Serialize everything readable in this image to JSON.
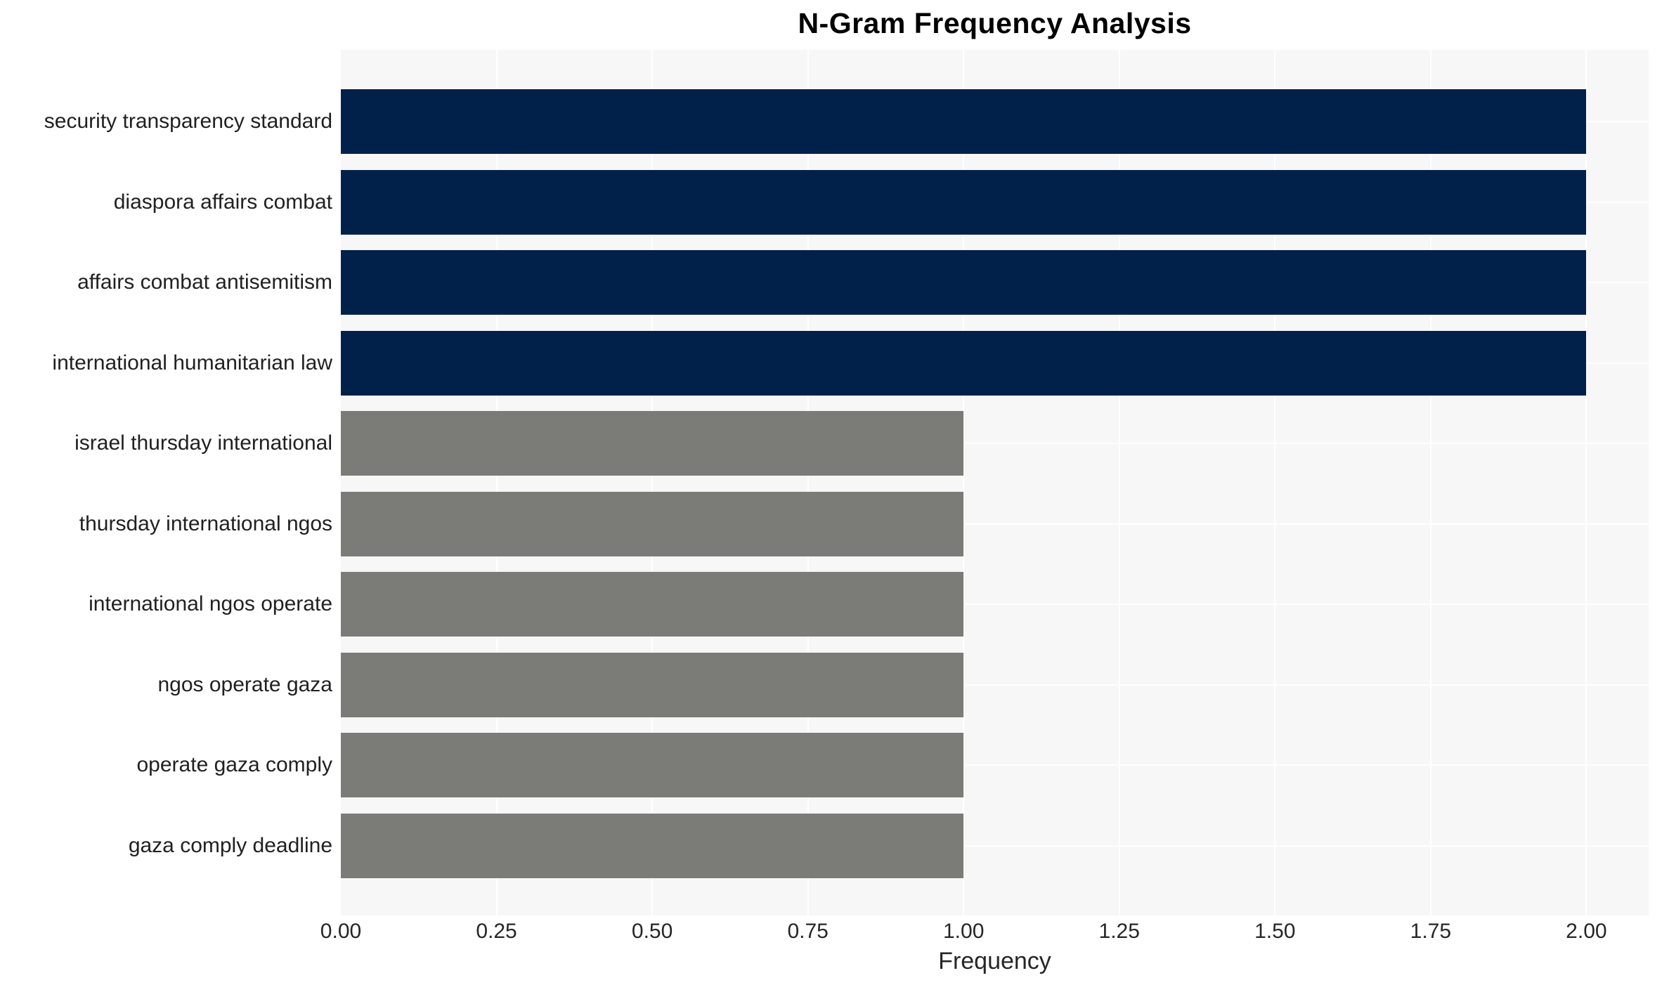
{
  "chart_data": {
    "type": "bar",
    "orientation": "horizontal",
    "title": "N-Gram Frequency Analysis",
    "xlabel": "Frequency",
    "ylabel": "",
    "categories": [
      "security transparency standard",
      "diaspora affairs combat",
      "affairs combat antisemitism",
      "international humanitarian law",
      "israel thursday international",
      "thursday international ngos",
      "international ngos operate",
      "ngos operate gaza",
      "operate gaza comply",
      "gaza comply deadline"
    ],
    "values": [
      2,
      2,
      2,
      2,
      1,
      1,
      1,
      1,
      1,
      1
    ],
    "bar_colors": [
      "#02214a",
      "#02214a",
      "#02214a",
      "#02214a",
      "#7b7b78",
      "#7b7b78",
      "#7b7b78",
      "#7b7b78",
      "#7b7b78",
      "#7b7b78"
    ],
    "xlim": [
      0,
      2.1
    ],
    "x_ticks": [
      "0.00",
      "0.25",
      "0.50",
      "0.75",
      "1.00",
      "1.25",
      "1.50",
      "1.75",
      "2.00"
    ],
    "grid": "vertical and horizontal white gridlines on light gray plot background",
    "legend": "none",
    "colors": {
      "bar_high": "#02214a",
      "bar_low": "#7b7b78",
      "plot_background": "#f7f7f8",
      "gridline": "#ffffff",
      "tick_text": "#262626",
      "label_text": "#212121",
      "title_text": "#000000"
    }
  }
}
